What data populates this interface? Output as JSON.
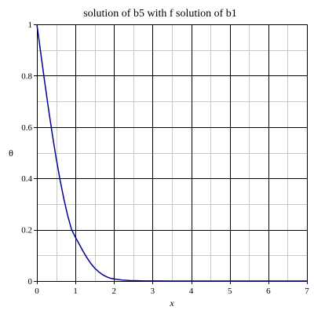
{
  "chart_data": {
    "type": "line",
    "title": "solution of b5 with f solution of b1",
    "xlabel": "x",
    "ylabel": "θ",
    "xlim": [
      0,
      7
    ],
    "ylim": [
      0,
      1
    ],
    "x_ticks": [
      0,
      1,
      2,
      3,
      4,
      5,
      6,
      7
    ],
    "y_ticks": [
      0,
      0.2,
      0.4,
      0.6,
      0.8,
      1
    ],
    "x_minor_step": 0.5,
    "y_minor_step": 0.1,
    "grid": true,
    "grid_major_color": "#000000",
    "grid_minor_color": "#c8c8c8",
    "series": [
      {
        "color": "#000099",
        "x": [
          0,
          0.1,
          0.2,
          0.3,
          0.4,
          0.5,
          0.6,
          0.7,
          0.8,
          0.9,
          1.0,
          1.1,
          1.2,
          1.3,
          1.4,
          1.5,
          1.6,
          1.7,
          1.8,
          1.9,
          2.0,
          2.2,
          2.4,
          2.6,
          2.8,
          3.0,
          3.5,
          4.0,
          5.0,
          6.0,
          7.0
        ],
        "y": [
          1.0,
          0.888,
          0.778,
          0.671,
          0.571,
          0.478,
          0.394,
          0.319,
          0.254,
          0.2,
          0.17,
          0.143,
          0.115,
          0.09,
          0.068,
          0.05,
          0.036,
          0.025,
          0.017,
          0.011,
          0.008,
          0.004,
          0.002,
          0.001,
          0.0005,
          0.0002,
          0,
          0,
          0,
          0,
          0
        ]
      }
    ]
  }
}
